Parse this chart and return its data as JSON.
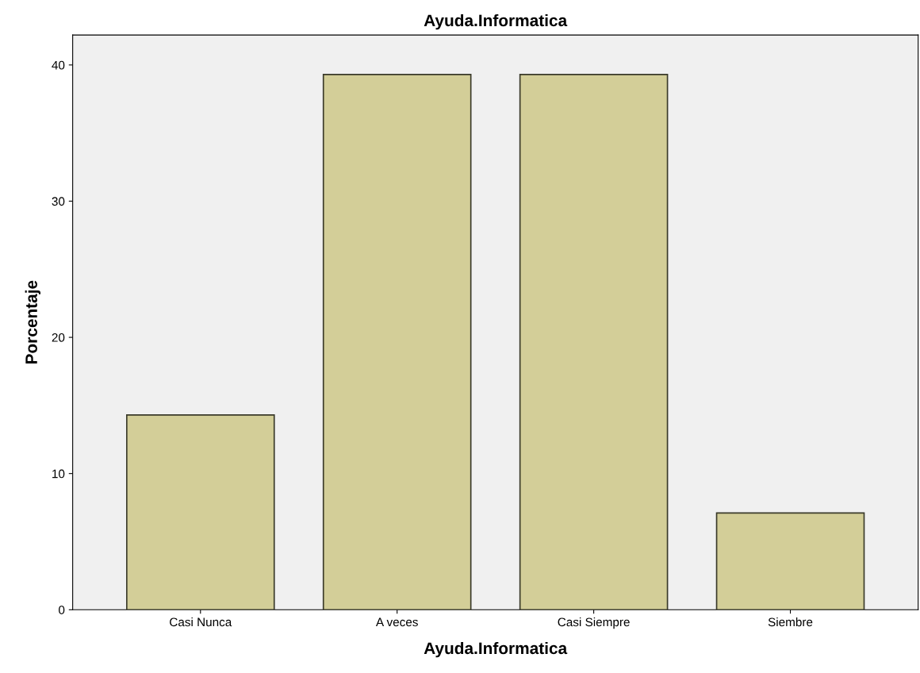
{
  "chart_data": {
    "type": "bar",
    "title": "Ayuda.Informatica",
    "xlabel": "Ayuda.Informatica",
    "ylabel": "Porcentaje",
    "categories": [
      "Casi Nunca",
      "A veces",
      "Casi Siempre",
      "Siembre"
    ],
    "values": [
      14.3,
      39.3,
      39.3,
      7.1
    ],
    "color": "#d3ce98",
    "ylim": [
      0,
      42.2
    ],
    "yticks": [
      0,
      10,
      20,
      30,
      40
    ],
    "grid": false
  }
}
